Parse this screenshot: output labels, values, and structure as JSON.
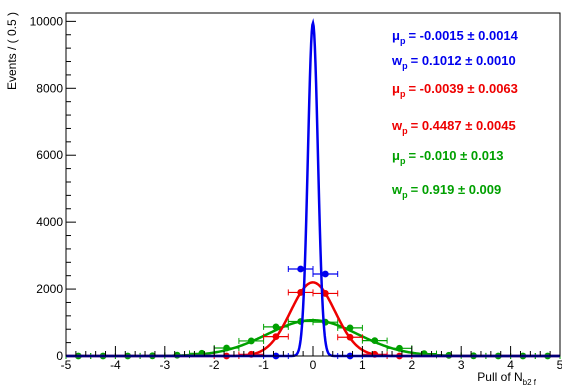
{
  "chart_data": {
    "type": "line",
    "xlabel": "Pull of N",
    "xlabel_sub": "b2 f",
    "ylabel": "Events / ( 0.5 )",
    "xlim": [
      -5,
      5
    ],
    "ylim": [
      0,
      10250
    ],
    "x_ticks": [
      -5,
      -4,
      -3,
      -2,
      -1,
      0,
      1,
      2,
      3,
      4,
      5
    ],
    "y_ticks": [
      0,
      2000,
      4000,
      6000,
      8000,
      10000
    ],
    "series": [
      {
        "color": "#0000ee",
        "mu": -0.0015,
        "w": 0.1012,
        "peak": 9950,
        "mu_text": "= -0.0015 ± 0.0014",
        "w_text": "= 0.1012 ± 0.0010",
        "points": [
          {
            "x": -0.25,
            "y": 2600,
            "xerr": 0.25,
            "yerr": 50
          },
          {
            "x": 0.25,
            "y": 2450,
            "xerr": 0.25,
            "yerr": 50
          },
          {
            "x": -0.75,
            "y": 0,
            "xerr": 0.25,
            "yerr": 0
          },
          {
            "x": 0.75,
            "y": 0,
            "xerr": 0.25,
            "yerr": 0
          }
        ]
      },
      {
        "color": "#ee0000",
        "mu": -0.0039,
        "w": 0.4487,
        "peak": 2200,
        "mu_text": "= -0.0039 ± 0.0063",
        "w_text": "= 0.4487 ± 0.0045",
        "points": [
          {
            "x": -0.25,
            "y": 1900,
            "xerr": 0.25,
            "yerr": 45
          },
          {
            "x": 0.25,
            "y": 1870,
            "xerr": 0.25,
            "yerr": 45
          },
          {
            "x": -0.75,
            "y": 580,
            "xerr": 0.25,
            "yerr": 25
          },
          {
            "x": 0.75,
            "y": 560,
            "xerr": 0.25,
            "yerr": 25
          },
          {
            "x": -1.25,
            "y": 50,
            "xerr": 0.25,
            "yerr": 8
          },
          {
            "x": 1.25,
            "y": 50,
            "xerr": 0.25,
            "yerr": 8
          },
          {
            "x": -1.75,
            "y": 0,
            "xerr": 0.25,
            "yerr": 0
          },
          {
            "x": 1.75,
            "y": 0,
            "xerr": 0.25,
            "yerr": 0
          }
        ]
      },
      {
        "color": "#00a000",
        "mu": -0.01,
        "w": 0.919,
        "peak": 1070,
        "mu_text": "= -0.010 ± 0.013",
        "w_text": "= 0.919 ± 0.009",
        "points": [
          {
            "x": -0.25,
            "y": 1030,
            "xerr": 0.25,
            "yerr": 32
          },
          {
            "x": 0.25,
            "y": 1010,
            "xerr": 0.25,
            "yerr": 32
          },
          {
            "x": -0.75,
            "y": 870,
            "xerr": 0.25,
            "yerr": 30
          },
          {
            "x": 0.75,
            "y": 840,
            "xerr": 0.25,
            "yerr": 30
          },
          {
            "x": -1.25,
            "y": 450,
            "xerr": 0.25,
            "yerr": 22
          },
          {
            "x": 1.25,
            "y": 460,
            "xerr": 0.25,
            "yerr": 22
          },
          {
            "x": -1.75,
            "y": 240,
            "xerr": 0.25,
            "yerr": 16
          },
          {
            "x": 1.75,
            "y": 230,
            "xerr": 0.25,
            "yerr": 16
          },
          {
            "x": -2.25,
            "y": 80,
            "xerr": 0.25,
            "yerr": 9
          },
          {
            "x": 2.25,
            "y": 70,
            "xerr": 0.25,
            "yerr": 9
          },
          {
            "x": -2.75,
            "y": 25,
            "xerr": 0.25,
            "yerr": 5
          },
          {
            "x": 2.75,
            "y": 20,
            "xerr": 0.25,
            "yerr": 5
          },
          {
            "x": -3.25,
            "y": 5,
            "xerr": 0.25,
            "yerr": 2
          },
          {
            "x": 3.25,
            "y": 5,
            "xerr": 0.25,
            "yerr": 2
          },
          {
            "x": -3.75,
            "y": 0,
            "xerr": 0.25,
            "yerr": 0
          },
          {
            "x": 3.75,
            "y": 0,
            "xerr": 0.25,
            "yerr": 0
          },
          {
            "x": -4.25,
            "y": 0,
            "xerr": 0.25,
            "yerr": 0
          },
          {
            "x": 4.25,
            "y": 0,
            "xerr": 0.25,
            "yerr": 0
          },
          {
            "x": -4.75,
            "y": 0,
            "xerr": 0.25,
            "yerr": 0
          },
          {
            "x": 4.75,
            "y": 0,
            "xerr": 0.25,
            "yerr": 0
          }
        ]
      }
    ],
    "legend": {
      "mu_symbol": "μ",
      "w_symbol": "w",
      "subscript": "p"
    }
  }
}
